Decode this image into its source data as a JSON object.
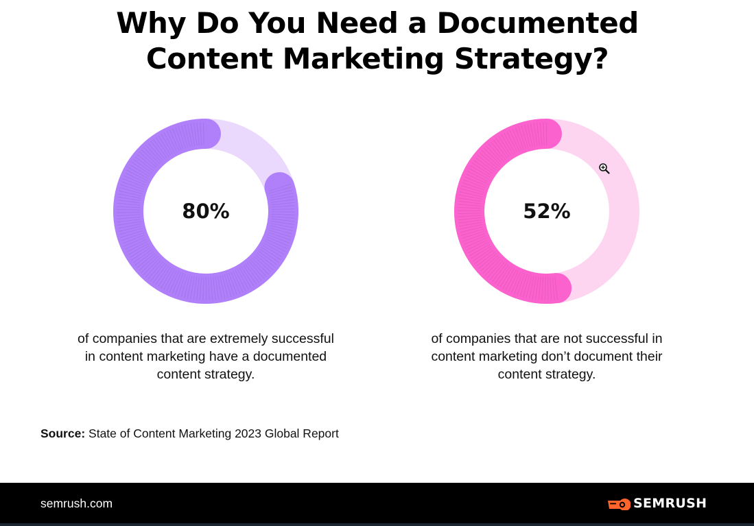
{
  "title": "Why Do You Need a Documented Content Marketing Strategy?",
  "chart_data": [
    {
      "type": "pie",
      "values": [
        80,
        20
      ],
      "label": "80%",
      "caption": "of companies that are extremely successful in content marketing have a documented content strategy.",
      "colors": {
        "value": "#b07ffa",
        "remainder": "#ead9fd"
      }
    },
    {
      "type": "pie",
      "values": [
        52,
        48
      ],
      "label": "52%",
      "caption": "of companies that are not successful in content marketing don’t document their content strategy.",
      "colors": {
        "value": "#fb62cd",
        "remainder": "#fdd5f0"
      }
    }
  ],
  "source": {
    "label": "Source:",
    "text": "State of Content Marketing 2023 Global Report"
  },
  "footer": {
    "site": "semrush.com",
    "brand": "SEMRUSH",
    "brand_color": "#ff642d",
    "logo_icon": "semrush-flame-icon"
  },
  "cursor_icon": "zoom-in-icon"
}
